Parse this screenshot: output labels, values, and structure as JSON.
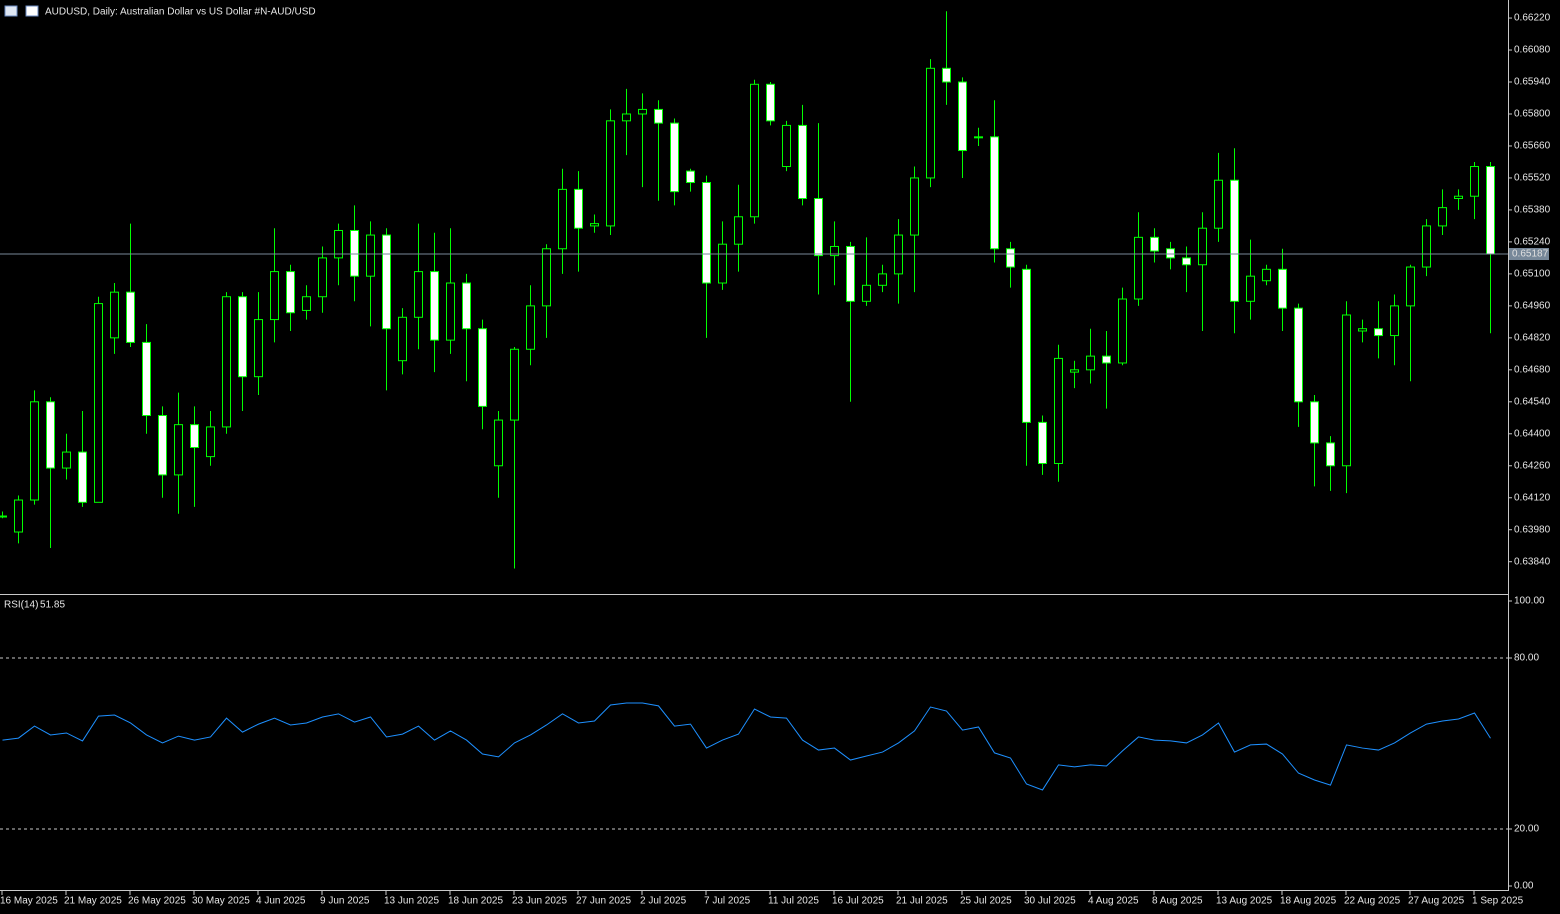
{
  "chart_data": [
    {
      "type": "candlestick",
      "title": "AUDUSD, Daily:  Australian Dollar vs US Dollar #N-AUD/USD",
      "categories": [
        "16 May 2025",
        null,
        null,
        null,
        "21 May 2025",
        null,
        null,
        null,
        "26 May 2025",
        null,
        null,
        null,
        "30 May 2025",
        null,
        null,
        null,
        "4 Jun 2025",
        null,
        null,
        null,
        "9 Jun 2025",
        null,
        null,
        null,
        "13 Jun 2025",
        null,
        null,
        null,
        "18 Jun 2025",
        null,
        null,
        null,
        "23 Jun 2025",
        null,
        null,
        null,
        "27 Jun 2025",
        null,
        null,
        null,
        "2 Jul 2025",
        null,
        null,
        null,
        "7 Jul 2025",
        null,
        null,
        null,
        "11 Jul 2025",
        null,
        null,
        null,
        "16 Jul 2025",
        null,
        null,
        null,
        "21 Jul 2025",
        null,
        null,
        null,
        "25 Jul 2025",
        null,
        null,
        null,
        "30 Jul 2025",
        null,
        null,
        null,
        "4 Aug 2025",
        null,
        null,
        null,
        "8 Aug 2025",
        null,
        null,
        null,
        "13 Aug 2025",
        null,
        null,
        null,
        "18 Aug 2025",
        null,
        null,
        null,
        "22 Aug 2025",
        null,
        null,
        null,
        "27 Aug 2025",
        null,
        null,
        null,
        "1 Sep 2025",
        null
      ],
      "open": [
        0.6404,
        0.6397,
        0.6411,
        0.6454,
        0.6425,
        0.6432,
        0.641,
        0.6482,
        0.6502,
        0.648,
        0.6448,
        0.6422,
        0.6444,
        0.643,
        0.6443,
        0.65,
        0.6465,
        0.649,
        0.6511,
        0.6494,
        0.65,
        0.6517,
        0.6529,
        0.6509,
        0.6527,
        0.6472,
        0.6491,
        0.6511,
        0.6481,
        0.6506,
        0.6486,
        0.6426,
        0.6446,
        0.6477,
        0.6496,
        0.6521,
        0.6547,
        0.6531,
        0.6531,
        0.6577,
        0.658,
        0.6582,
        0.6576,
        0.6555,
        0.655,
        0.6506,
        0.6523,
        0.6535,
        0.6593,
        0.6557,
        0.6575,
        0.6543,
        0.6518,
        0.6522,
        0.6498,
        0.6505,
        0.651,
        0.6527,
        0.6552,
        0.66,
        0.6594,
        0.657,
        0.657,
        0.6521,
        0.6512,
        0.6445,
        0.6427,
        0.6467,
        0.6468,
        0.6474,
        0.6471,
        0.6499,
        0.6526,
        0.6521,
        0.6517,
        0.6514,
        0.653,
        0.6551,
        0.6498,
        0.6507,
        0.6512,
        0.6495,
        0.6454,
        0.6436,
        0.6426,
        0.6485,
        0.6486,
        0.6483,
        0.6496,
        0.6513,
        0.6531,
        0.6543,
        0.6544,
        0.6557
      ],
      "high": [
        0.6406,
        0.6413,
        0.6459,
        0.6456,
        0.644,
        0.645,
        0.65,
        0.6506,
        0.6532,
        0.6488,
        0.6452,
        0.6458,
        0.6452,
        0.645,
        0.6502,
        0.6502,
        0.6502,
        0.653,
        0.6514,
        0.6505,
        0.6522,
        0.6532,
        0.654,
        0.6533,
        0.653,
        0.6495,
        0.6532,
        0.6528,
        0.653,
        0.651,
        0.649,
        0.645,
        0.6478,
        0.6505,
        0.6523,
        0.6556,
        0.6555,
        0.6536,
        0.6582,
        0.6591,
        0.6589,
        0.6586,
        0.6578,
        0.6556,
        0.6553,
        0.6533,
        0.6549,
        0.6595,
        0.6594,
        0.6577,
        0.6584,
        0.6576,
        0.6533,
        0.6524,
        0.6526,
        0.6514,
        0.6534,
        0.6557,
        0.6604,
        0.6625,
        0.6596,
        0.6574,
        0.6586,
        0.6524,
        0.6514,
        0.6448,
        0.6479,
        0.6472,
        0.6486,
        0.6485,
        0.6504,
        0.6537,
        0.653,
        0.6524,
        0.6522,
        0.6537,
        0.6563,
        0.6565,
        0.6525,
        0.6514,
        0.6521,
        0.6497,
        0.6457,
        0.6439,
        0.6498,
        0.649,
        0.6498,
        0.6501,
        0.6514,
        0.6534,
        0.6547,
        0.6547,
        0.6559,
        0.6559
      ],
      "low": [
        0.6403,
        0.6392,
        0.6409,
        0.639,
        0.642,
        0.6408,
        0.641,
        0.6475,
        0.6478,
        0.644,
        0.6412,
        0.6405,
        0.6408,
        0.6426,
        0.644,
        0.645,
        0.6457,
        0.648,
        0.6485,
        0.649,
        0.6493,
        0.6505,
        0.6498,
        0.6487,
        0.6459,
        0.6466,
        0.6477,
        0.6467,
        0.6475,
        0.6463,
        0.6442,
        0.6412,
        0.6381,
        0.647,
        0.6482,
        0.651,
        0.6511,
        0.6528,
        0.6527,
        0.6562,
        0.6548,
        0.6542,
        0.654,
        0.6546,
        0.6482,
        0.6503,
        0.6511,
        0.6532,
        0.6575,
        0.6555,
        0.654,
        0.6501,
        0.6505,
        0.6454,
        0.6496,
        0.6502,
        0.6497,
        0.6502,
        0.6548,
        0.6584,
        0.6552,
        0.6566,
        0.6515,
        0.6504,
        0.6426,
        0.6422,
        0.6419,
        0.646,
        0.6462,
        0.6451,
        0.647,
        0.6496,
        0.6515,
        0.6512,
        0.6502,
        0.6485,
        0.6524,
        0.6484,
        0.649,
        0.6505,
        0.6485,
        0.6443,
        0.6417,
        0.6415,
        0.6414,
        0.648,
        0.6473,
        0.647,
        0.6463,
        0.6509,
        0.6527,
        0.6538,
        0.6534,
        0.6484
      ],
      "close": [
        0.6404,
        0.6411,
        0.6454,
        0.6425,
        0.6432,
        0.641,
        0.6497,
        0.6502,
        0.648,
        0.6448,
        0.6422,
        0.6444,
        0.6434,
        0.6443,
        0.65,
        0.6465,
        0.649,
        0.6511,
        0.6493,
        0.65,
        0.6517,
        0.6529,
        0.6509,
        0.6527,
        0.6486,
        0.6491,
        0.6511,
        0.6481,
        0.6506,
        0.6486,
        0.6452,
        0.6446,
        0.6477,
        0.6496,
        0.6521,
        0.6547,
        0.653,
        0.6532,
        0.6577,
        0.658,
        0.6582,
        0.6576,
        0.6546,
        0.655,
        0.6506,
        0.6523,
        0.6535,
        0.6593,
        0.6577,
        0.6575,
        0.6543,
        0.6518,
        0.6522,
        0.6498,
        0.6505,
        0.651,
        0.6527,
        0.6552,
        0.66,
        0.6594,
        0.6564,
        0.657,
        0.6521,
        0.6513,
        0.6445,
        0.6427,
        0.6473,
        0.6468,
        0.6474,
        0.6471,
        0.6499,
        0.6526,
        0.652,
        0.6517,
        0.6514,
        0.653,
        0.6551,
        0.6498,
        0.6509,
        0.6512,
        0.6495,
        0.6454,
        0.6436,
        0.6426,
        0.6492,
        0.6486,
        0.6483,
        0.6496,
        0.6513,
        0.6531,
        0.6539,
        0.6544,
        0.6557,
        0.65187
      ],
      "color": "#00ff00",
      "ylim": [
        0.63703,
        0.66299
      ],
      "yticks": [
        {
          "value": 0.6622,
          "label": "0.66220"
        },
        {
          "value": 0.6608,
          "label": "0.66080"
        },
        {
          "value": 0.6594,
          "label": "0.65940"
        },
        {
          "value": 0.658,
          "label": "0.65800"
        },
        {
          "value": 0.6566,
          "label": "0.65660"
        },
        {
          "value": 0.6552,
          "label": "0.65520"
        },
        {
          "value": 0.6538,
          "label": "0.65380"
        },
        {
          "value": 0.6524,
          "label": "0.65240"
        },
        {
          "value": 0.651,
          "label": "0.65100"
        },
        {
          "value": 0.6496,
          "label": "0.64960"
        },
        {
          "value": 0.6482,
          "label": "0.64820"
        },
        {
          "value": 0.6468,
          "label": "0.64680"
        },
        {
          "value": 0.6454,
          "label": "0.64540"
        },
        {
          "value": 0.644,
          "label": "0.64400"
        },
        {
          "value": 0.6426,
          "label": "0.64260"
        },
        {
          "value": 0.6412,
          "label": "0.64120"
        },
        {
          "value": 0.6398,
          "label": "0.63980"
        },
        {
          "value": 0.6384,
          "label": "0.63840"
        }
      ]
    },
    {
      "type": "line",
      "title": "RSI(14)",
      "values": [
        51.2,
        51.9,
        56.1,
        53.0,
        53.7,
        50.9,
        59.6,
        60.0,
        57.2,
        53.0,
        50.2,
        52.6,
        51.2,
        52.3,
        58.9,
        54.0,
        56.8,
        58.9,
        56.5,
        57.2,
        59.3,
        60.4,
        57.5,
        59.3,
        52.3,
        53.3,
        56.1,
        51.2,
        54.4,
        51.2,
        46.3,
        45.3,
        50.2,
        53.0,
        56.5,
        60.4,
        57.2,
        57.9,
        63.5,
        64.2,
        64.2,
        63.2,
        56.1,
        56.8,
        48.4,
        51.2,
        53.3,
        62.1,
        59.3,
        58.9,
        51.2,
        47.7,
        48.4,
        44.2,
        45.6,
        47.0,
        50.2,
        54.4,
        62.8,
        61.4,
        54.7,
        55.8,
        46.7,
        44.9,
        35.8,
        33.7,
        42.5,
        41.8,
        42.5,
        42.1,
        47.4,
        52.3,
        51.2,
        50.9,
        50.2,
        53.0,
        57.2,
        47.0,
        49.5,
        49.8,
        46.3,
        39.6,
        37.2,
        35.4,
        49.5,
        48.4,
        47.7,
        50.2,
        53.7,
        56.8,
        57.9,
        58.6,
        60.7,
        51.85
      ],
      "color": "#1e90ff",
      "ylim": [
        0,
        100
      ],
      "yticks": [
        {
          "value": 100,
          "label": "100.00"
        },
        {
          "value": 80,
          "label": "80.00"
        },
        {
          "value": 20,
          "label": "20.00"
        },
        {
          "value": 0,
          "label": "0.00"
        }
      ],
      "levels": [
        80,
        20
      ]
    }
  ]
}
